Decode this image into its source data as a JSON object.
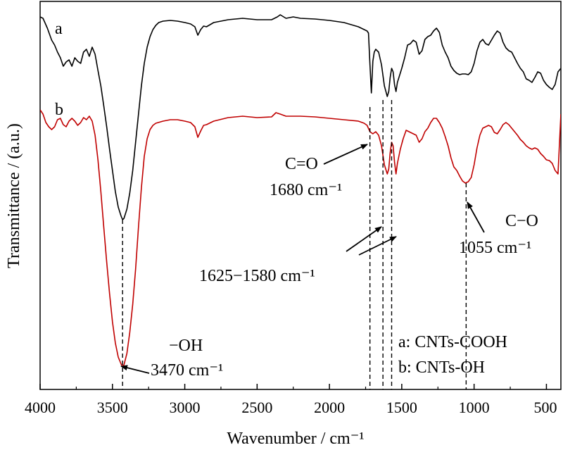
{
  "chart_data": {
    "type": "line",
    "xlabel": "Wavenumber / cm⁻¹",
    "ylabel": "Transmittance / (a.u.)",
    "xlim": [
      4000,
      400
    ],
    "x_reversed": true,
    "y_ticks_shown": false,
    "grid": false,
    "xticks": [
      4000,
      3500,
      3000,
      2500,
      2000,
      1500,
      1000,
      500
    ],
    "series": [
      {
        "name": "a",
        "color": "#000000",
        "points": [
          [
            4000,
            22
          ],
          [
            3980,
            24
          ],
          [
            3950,
            38
          ],
          [
            3920,
            55
          ],
          [
            3900,
            62
          ],
          [
            3880,
            72
          ],
          [
            3860,
            80
          ],
          [
            3840,
            92
          ],
          [
            3820,
            86
          ],
          [
            3800,
            83
          ],
          [
            3780,
            92
          ],
          [
            3760,
            80
          ],
          [
            3740,
            85
          ],
          [
            3720,
            88
          ],
          [
            3700,
            72
          ],
          [
            3680,
            68
          ],
          [
            3660,
            78
          ],
          [
            3640,
            65
          ],
          [
            3620,
            75
          ],
          [
            3600,
            98
          ],
          [
            3580,
            120
          ],
          [
            3560,
            148
          ],
          [
            3540,
            178
          ],
          [
            3520,
            210
          ],
          [
            3500,
            240
          ],
          [
            3480,
            270
          ],
          [
            3460,
            292
          ],
          [
            3440,
            305
          ],
          [
            3430,
            310
          ],
          [
            3420,
            308
          ],
          [
            3400,
            295
          ],
          [
            3380,
            272
          ],
          [
            3360,
            240
          ],
          [
            3340,
            200
          ],
          [
            3320,
            160
          ],
          [
            3300,
            120
          ],
          [
            3280,
            88
          ],
          [
            3260,
            65
          ],
          [
            3240,
            50
          ],
          [
            3220,
            40
          ],
          [
            3200,
            34
          ],
          [
            3180,
            30
          ],
          [
            3150,
            28
          ],
          [
            3100,
            27
          ],
          [
            3050,
            28
          ],
          [
            3000,
            30
          ],
          [
            2960,
            32
          ],
          [
            2930,
            36
          ],
          [
            2910,
            48
          ],
          [
            2890,
            40
          ],
          [
            2870,
            35
          ],
          [
            2850,
            36
          ],
          [
            2800,
            30
          ],
          [
            2700,
            26
          ],
          [
            2600,
            24
          ],
          [
            2500,
            26
          ],
          [
            2400,
            26
          ],
          [
            2360,
            22
          ],
          [
            2340,
            19
          ],
          [
            2300,
            24
          ],
          [
            2250,
            22
          ],
          [
            2200,
            24
          ],
          [
            2100,
            25
          ],
          [
            2000,
            27
          ],
          [
            1900,
            30
          ],
          [
            1800,
            36
          ],
          [
            1740,
            42
          ],
          [
            1730,
            45
          ],
          [
            1720,
            90
          ],
          [
            1710,
            130
          ],
          [
            1700,
            85
          ],
          [
            1690,
            72
          ],
          [
            1680,
            68
          ],
          [
            1660,
            72
          ],
          [
            1640,
            90
          ],
          [
            1620,
            120
          ],
          [
            1600,
            135
          ],
          [
            1590,
            128
          ],
          [
            1580,
            108
          ],
          [
            1570,
            95
          ],
          [
            1560,
            100
          ],
          [
            1550,
            118
          ],
          [
            1540,
            128
          ],
          [
            1530,
            115
          ],
          [
            1500,
            95
          ],
          [
            1480,
            80
          ],
          [
            1460,
            62
          ],
          [
            1440,
            60
          ],
          [
            1420,
            55
          ],
          [
            1400,
            58
          ],
          [
            1380,
            75
          ],
          [
            1360,
            70
          ],
          [
            1340,
            54
          ],
          [
            1320,
            50
          ],
          [
            1300,
            48
          ],
          [
            1280,
            42
          ],
          [
            1260,
            38
          ],
          [
            1240,
            44
          ],
          [
            1220,
            62
          ],
          [
            1200,
            72
          ],
          [
            1180,
            80
          ],
          [
            1160,
            92
          ],
          [
            1140,
            98
          ],
          [
            1120,
            102
          ],
          [
            1100,
            104
          ],
          [
            1080,
            103
          ],
          [
            1060,
            103
          ],
          [
            1040,
            104
          ],
          [
            1020,
            100
          ],
          [
            1000,
            88
          ],
          [
            980,
            70
          ],
          [
            960,
            58
          ],
          [
            940,
            54
          ],
          [
            920,
            60
          ],
          [
            900,
            62
          ],
          [
            880,
            55
          ],
          [
            860,
            48
          ],
          [
            840,
            42
          ],
          [
            820,
            45
          ],
          [
            800,
            58
          ],
          [
            780,
            66
          ],
          [
            760,
            70
          ],
          [
            740,
            72
          ],
          [
            720,
            80
          ],
          [
            700,
            88
          ],
          [
            680,
            95
          ],
          [
            660,
            100
          ],
          [
            640,
            110
          ],
          [
            620,
            112
          ],
          [
            600,
            115
          ],
          [
            580,
            108
          ],
          [
            560,
            100
          ],
          [
            540,
            102
          ],
          [
            520,
            112
          ],
          [
            500,
            118
          ],
          [
            480,
            122
          ],
          [
            460,
            125
          ],
          [
            440,
            118
          ],
          [
            420,
            100
          ],
          [
            400,
            95
          ]
        ]
      },
      {
        "name": "b",
        "color": "#c00000",
        "points": [
          [
            4000,
            154
          ],
          [
            3980,
            160
          ],
          [
            3960,
            172
          ],
          [
            3940,
            178
          ],
          [
            3920,
            182
          ],
          [
            3900,
            178
          ],
          [
            3880,
            168
          ],
          [
            3860,
            166
          ],
          [
            3840,
            175
          ],
          [
            3820,
            178
          ],
          [
            3800,
            170
          ],
          [
            3780,
            166
          ],
          [
            3760,
            170
          ],
          [
            3740,
            176
          ],
          [
            3720,
            172
          ],
          [
            3700,
            165
          ],
          [
            3680,
            168
          ],
          [
            3660,
            163
          ],
          [
            3640,
            170
          ],
          [
            3620,
            190
          ],
          [
            3600,
            225
          ],
          [
            3580,
            270
          ],
          [
            3560,
            320
          ],
          [
            3540,
            370
          ],
          [
            3520,
            415
          ],
          [
            3500,
            455
          ],
          [
            3480,
            485
          ],
          [
            3460,
            505
          ],
          [
            3440,
            515
          ],
          [
            3430,
            518
          ],
          [
            3420,
            516
          ],
          [
            3400,
            500
          ],
          [
            3380,
            470
          ],
          [
            3360,
            430
          ],
          [
            3340,
            380
          ],
          [
            3320,
            320
          ],
          [
            3300,
            265
          ],
          [
            3280,
            220
          ],
          [
            3260,
            195
          ],
          [
            3240,
            182
          ],
          [
            3220,
            176
          ],
          [
            3200,
            173
          ],
          [
            3150,
            170
          ],
          [
            3100,
            168
          ],
          [
            3050,
            168
          ],
          [
            3000,
            170
          ],
          [
            2960,
            172
          ],
          [
            2930,
            178
          ],
          [
            2910,
            193
          ],
          [
            2890,
            184
          ],
          [
            2870,
            176
          ],
          [
            2850,
            175
          ],
          [
            2800,
            170
          ],
          [
            2700,
            165
          ],
          [
            2600,
            163
          ],
          [
            2500,
            165
          ],
          [
            2400,
            164
          ],
          [
            2370,
            158
          ],
          [
            2340,
            160
          ],
          [
            2300,
            163
          ],
          [
            2200,
            163
          ],
          [
            2100,
            164
          ],
          [
            2000,
            166
          ],
          [
            1900,
            168
          ],
          [
            1800,
            170
          ],
          [
            1760,
            173
          ],
          [
            1740,
            176
          ],
          [
            1720,
            185
          ],
          [
            1700,
            188
          ],
          [
            1680,
            185
          ],
          [
            1660,
            190
          ],
          [
            1640,
            205
          ],
          [
            1620,
            232
          ],
          [
            1600,
            245
          ],
          [
            1590,
            238
          ],
          [
            1580,
            215
          ],
          [
            1570,
            200
          ],
          [
            1560,
            205
          ],
          [
            1550,
            228
          ],
          [
            1540,
            245
          ],
          [
            1530,
            230
          ],
          [
            1510,
            210
          ],
          [
            1490,
            195
          ],
          [
            1470,
            183
          ],
          [
            1450,
            185
          ],
          [
            1420,
            188
          ],
          [
            1400,
            190
          ],
          [
            1380,
            200
          ],
          [
            1360,
            195
          ],
          [
            1340,
            185
          ],
          [
            1320,
            180
          ],
          [
            1300,
            172
          ],
          [
            1280,
            166
          ],
          [
            1260,
            166
          ],
          [
            1240,
            172
          ],
          [
            1220,
            180
          ],
          [
            1200,
            192
          ],
          [
            1180,
            205
          ],
          [
            1160,
            222
          ],
          [
            1140,
            235
          ],
          [
            1120,
            240
          ],
          [
            1100,
            248
          ],
          [
            1080,
            255
          ],
          [
            1060,
            258
          ],
          [
            1040,
            256
          ],
          [
            1020,
            250
          ],
          [
            1000,
            232
          ],
          [
            980,
            208
          ],
          [
            960,
            190
          ],
          [
            940,
            180
          ],
          [
            920,
            178
          ],
          [
            900,
            176
          ],
          [
            880,
            178
          ],
          [
            860,
            186
          ],
          [
            840,
            188
          ],
          [
            820,
            182
          ],
          [
            800,
            175
          ],
          [
            780,
            172
          ],
          [
            760,
            175
          ],
          [
            740,
            180
          ],
          [
            720,
            185
          ],
          [
            700,
            190
          ],
          [
            680,
            196
          ],
          [
            660,
            200
          ],
          [
            640,
            205
          ],
          [
            620,
            208
          ],
          [
            600,
            210
          ],
          [
            580,
            208
          ],
          [
            560,
            210
          ],
          [
            540,
            216
          ],
          [
            520,
            220
          ],
          [
            500,
            225
          ],
          [
            480,
            226
          ],
          [
            460,
            230
          ],
          [
            440,
            240
          ],
          [
            420,
            245
          ],
          [
            400,
            160
          ]
        ]
      }
    ],
    "curve_labels": [
      "a",
      "b"
    ],
    "dashed_markers": [
      3430,
      1720,
      1630,
      1570,
      1055
    ],
    "annotations": {
      "co_label": "C=O",
      "co_wave": "1680 cm⁻¹",
      "range_wave": "1625−1580 cm⁻¹",
      "c_o_label": "C−O",
      "c_o_wave": "1055 cm⁻¹",
      "oh_label": "−OH",
      "oh_wave": "3470 cm⁻¹"
    },
    "legend": {
      "placement": "bottom-right",
      "entries": [
        "a: CNTs-COOH",
        "b: CNTs-OH"
      ]
    }
  }
}
